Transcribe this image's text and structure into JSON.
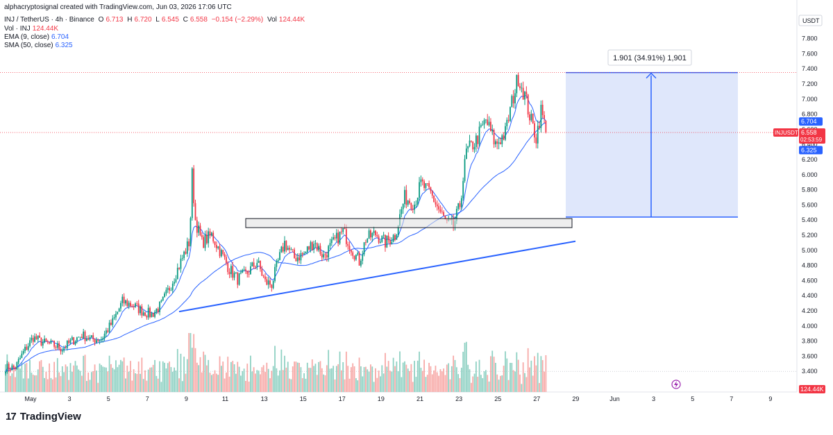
{
  "header": {
    "attribution": "alphacryptosignal created with TradingView.com, Jun 03, 2026 17:06 UTC",
    "symbol_line": "INJ / TetherUS · 4h · Binance",
    "ohlc": {
      "o_label": "O",
      "o": "6.713",
      "h_label": "H",
      "h": "6.720",
      "l_label": "L",
      "l": "6.545",
      "c_label": "C",
      "c": "6.558",
      "change": "−0.154 (−2.29%)",
      "vol_label": "Vol",
      "vol": "124.44K"
    },
    "vol_line": {
      "label": "Vol · INJ",
      "value": "124.44K"
    },
    "ema_line": {
      "label": "EMA (9, close)",
      "value": "6.704"
    },
    "sma_line": {
      "label": "SMA (50, close)",
      "value": "6.325"
    }
  },
  "colors": {
    "up": "#089981",
    "down": "#f23645",
    "ema": "#2962ff",
    "sma": "#2962ff",
    "box_fill": "#dbe4fb",
    "trendline": "#2962ff"
  },
  "measure_label": "1.901 (34.91%) 1,901",
  "price_scale": {
    "currency": "USDT",
    "ticks": [
      "7.800",
      "7.600",
      "7.400",
      "7.200",
      "7.000",
      "6.800",
      "6.600",
      "6.400",
      "6.200",
      "6.000",
      "5.800",
      "5.600",
      "5.400",
      "5.200",
      "5.000",
      "4.800",
      "4.600",
      "4.400",
      "4.200",
      "4.000",
      "3.800",
      "3.600",
      "3.400"
    ]
  },
  "price_labels": {
    "ema": "6.704",
    "symbol": "INJUSDT",
    "last": "6.558",
    "countdown": "02:53:59",
    "sma": "6.325",
    "volume": "124.44K"
  },
  "time_axis": [
    "May",
    "3",
    "5",
    "7",
    "9",
    "11",
    "13",
    "15",
    "17",
    "19",
    "21",
    "23",
    "25",
    "27",
    "29",
    "Jun",
    "3",
    "5",
    "7",
    "9"
  ],
  "branding": "TradingView",
  "chart_data": {
    "type": "candlestick",
    "interval": "4h",
    "ylim": [
      3.3,
      7.95
    ],
    "volume_ylim": [
      0,
      124440
    ],
    "key_prices": {
      "range_low": 5.44,
      "range_high": 7.35,
      "box_low": 5.33,
      "box_high": 5.4
    },
    "trendline": [
      [
        "May 9",
        4.19
      ],
      [
        "May 29",
        5.12
      ]
    ],
    "series": [
      {
        "name": "EMA (9, close)",
        "last": 6.704
      },
      {
        "name": "SMA (50, close)",
        "last": 6.325
      }
    ]
  }
}
